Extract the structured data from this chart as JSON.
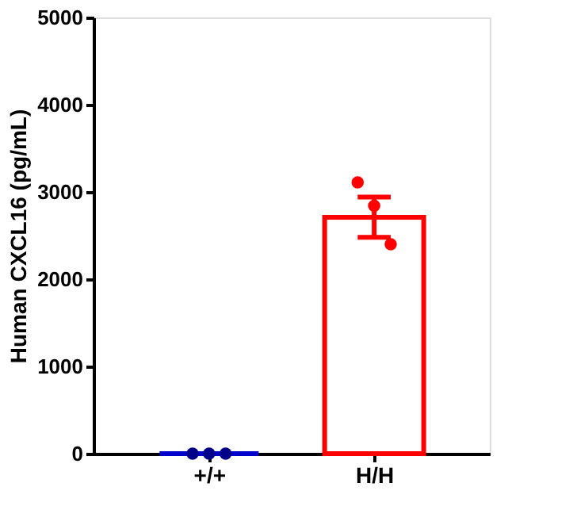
{
  "chart_data": {
    "type": "bar",
    "categories": [
      "+/+",
      "H/H"
    ],
    "ylabel": "Human CXCL16 (pg/mL)",
    "ylim": [
      0,
      5000
    ],
    "yticks": [
      0,
      1000,
      2000,
      3000,
      4000,
      5000
    ],
    "grid": false,
    "series": [
      {
        "colors": [
          "#0000cc",
          "#ff0000"
        ],
        "values": [
          0,
          2710
        ],
        "errors": [
          null,
          230
        ]
      },
      {
        "type": "scatter",
        "x": [
          "+/+",
          "+/+",
          "+/+",
          "H/H",
          "H/H",
          "H/H"
        ],
        "values": [
          0,
          0,
          0,
          3110,
          2840,
          2400
        ],
        "colors": [
          "#00008b",
          "#00008b",
          "#00008b",
          "#ff0000",
          "#ff0000",
          "#ff0000"
        ],
        "marker": "circle"
      }
    ]
  }
}
